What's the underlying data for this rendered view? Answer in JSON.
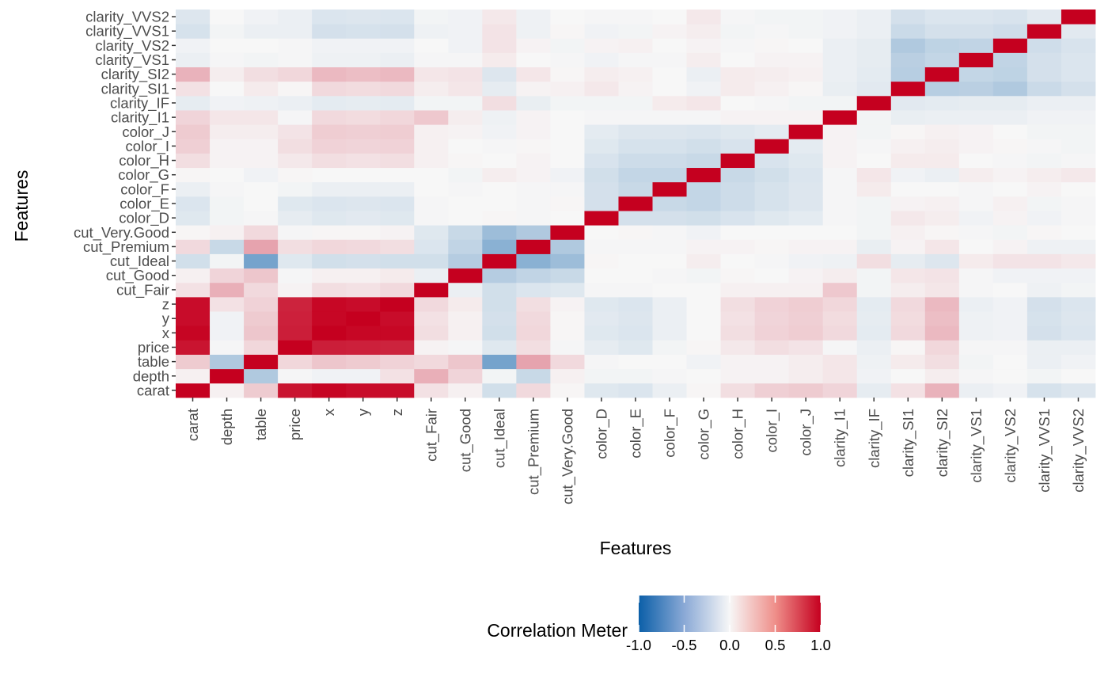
{
  "chart_data": {
    "type": "heatmap",
    "xlabel": "Features",
    "ylabel": "Features",
    "features": [
      "carat",
      "depth",
      "table",
      "price",
      "x",
      "y",
      "z",
      "cut_Fair",
      "cut_Good",
      "cut_Ideal",
      "cut_Premium",
      "cut_Very.Good",
      "color_D",
      "color_E",
      "color_F",
      "color_G",
      "color_H",
      "color_I",
      "color_J",
      "clarity_I1",
      "clarity_IF",
      "clarity_SI1",
      "clarity_SI2",
      "clarity_VS1",
      "clarity_VS2",
      "clarity_VVS1",
      "clarity_VVS2"
    ],
    "colorscale": {
      "low": "#053061",
      "mid": "#f7f7f7",
      "high": "#c5001f",
      "low_hex": "#0b5fa8"
    },
    "legend": {
      "title": "Correlation Meter",
      "range": [
        -1.0,
        1.0
      ],
      "ticks": [
        "-1.0",
        "-0.5",
        "0.0",
        "0.5",
        "1.0"
      ],
      "position": "bottom"
    },
    "matrix": [
      [
        1.0,
        0.03,
        0.18,
        0.92,
        0.98,
        0.95,
        0.95,
        0.09,
        0.03,
        -0.16,
        0.12,
        0.01,
        -0.1,
        -0.12,
        -0.05,
        0.01,
        0.1,
        0.16,
        0.18,
        0.14,
        -0.07,
        0.09,
        0.28,
        -0.05,
        -0.03,
        -0.14,
        -0.11
      ],
      [
        0.03,
        1.0,
        -0.3,
        -0.01,
        -0.03,
        -0.03,
        0.09,
        0.29,
        0.14,
        -0.02,
        -0.2,
        0.03,
        -0.02,
        -0.02,
        -0.01,
        0.0,
        0.02,
        0.02,
        0.04,
        0.07,
        -0.03,
        0.0,
        0.04,
        -0.01,
        0.0,
        -0.02,
        0.0
      ],
      [
        0.18,
        -0.3,
        1.0,
        0.13,
        0.2,
        0.18,
        0.15,
        0.12,
        0.2,
        -0.55,
        0.34,
        0.12,
        -0.01,
        0.0,
        0.0,
        -0.03,
        0.02,
        0.02,
        0.04,
        0.07,
        -0.04,
        0.05,
        0.1,
        -0.02,
        0.0,
        -0.05,
        -0.03
      ],
      [
        0.92,
        -0.01,
        0.13,
        1.0,
        0.88,
        0.87,
        0.86,
        0.02,
        -0.01,
        -0.1,
        0.1,
        -0.01,
        -0.07,
        -0.1,
        -0.02,
        0.01,
        0.06,
        0.1,
        0.08,
        -0.01,
        -0.05,
        0.01,
        0.13,
        -0.01,
        -0.01,
        -0.05,
        -0.05
      ],
      [
        0.98,
        -0.03,
        0.2,
        0.88,
        1.0,
        0.97,
        0.97,
        0.1,
        0.03,
        -0.16,
        0.13,
        0.01,
        -0.1,
        -0.12,
        -0.05,
        0.0,
        0.1,
        0.15,
        0.17,
        0.12,
        -0.08,
        0.12,
        0.25,
        -0.04,
        -0.03,
        -0.15,
        -0.12
      ],
      [
        0.95,
        -0.03,
        0.18,
        0.87,
        0.97,
        1.0,
        0.95,
        0.09,
        0.03,
        -0.15,
        0.12,
        0.01,
        -0.09,
        -0.11,
        -0.05,
        0.0,
        0.09,
        0.14,
        0.16,
        0.11,
        -0.07,
        0.11,
        0.23,
        -0.04,
        -0.03,
        -0.14,
        -0.11
      ],
      [
        0.95,
        0.09,
        0.15,
        0.86,
        0.97,
        0.95,
        1.0,
        0.12,
        0.05,
        -0.16,
        0.1,
        0.02,
        -0.1,
        -0.12,
        -0.05,
        0.0,
        0.1,
        0.15,
        0.17,
        0.13,
        -0.08,
        0.12,
        0.25,
        -0.05,
        -0.03,
        -0.15,
        -0.12
      ],
      [
        0.09,
        0.29,
        0.12,
        0.02,
        0.1,
        0.09,
        0.12,
        1.0,
        -0.05,
        -0.16,
        -0.12,
        -0.1,
        -0.01,
        -0.01,
        0.0,
        0.0,
        0.03,
        0.03,
        0.03,
        0.19,
        -0.02,
        0.04,
        0.07,
        -0.01,
        0.0,
        -0.04,
        -0.02
      ],
      [
        0.03,
        0.14,
        0.2,
        -0.01,
        0.03,
        0.03,
        0.05,
        -0.05,
        1.0,
        -0.28,
        -0.23,
        -0.2,
        0.0,
        0.0,
        -0.01,
        -0.02,
        0.01,
        0.0,
        0.02,
        0.04,
        -0.02,
        0.07,
        0.08,
        -0.01,
        -0.03,
        -0.03,
        -0.03
      ],
      [
        -0.16,
        -0.02,
        -0.55,
        -0.1,
        -0.16,
        -0.15,
        -0.16,
        -0.16,
        -0.28,
        1.0,
        -0.46,
        -0.38,
        0.01,
        0.0,
        0.0,
        0.04,
        0.0,
        -0.01,
        -0.03,
        -0.04,
        0.1,
        -0.07,
        -0.11,
        0.05,
        0.08,
        0.08,
        0.06
      ],
      [
        0.12,
        -0.2,
        0.34,
        0.1,
        0.13,
        0.12,
        0.1,
        -0.12,
        -0.23,
        -0.46,
        1.0,
        -0.3,
        -0.01,
        -0.01,
        -0.01,
        0.02,
        0.02,
        0.01,
        0.02,
        0.02,
        -0.06,
        0.02,
        0.07,
        0.0,
        0.02,
        -0.04,
        -0.04
      ],
      [
        0.01,
        0.03,
        0.12,
        -0.01,
        0.01,
        0.01,
        0.02,
        -0.1,
        -0.2,
        -0.38,
        -0.3,
        1.0,
        0.0,
        0.01,
        -0.01,
        -0.03,
        0.0,
        0.0,
        0.0,
        0.0,
        -0.02,
        0.03,
        0.01,
        -0.01,
        -0.02,
        0.01,
        0.0
      ],
      [
        -0.1,
        -0.02,
        -0.01,
        -0.07,
        -0.1,
        -0.09,
        -0.1,
        -0.01,
        0.0,
        0.01,
        -0.01,
        0.0,
        1.0,
        -0.15,
        -0.15,
        -0.16,
        -0.13,
        -0.1,
        -0.08,
        -0.01,
        -0.02,
        0.06,
        0.04,
        -0.03,
        0.02,
        -0.03,
        -0.01
      ],
      [
        -0.12,
        -0.02,
        0.0,
        -0.1,
        -0.12,
        -0.11,
        -0.12,
        -0.01,
        0.0,
        0.0,
        -0.01,
        0.01,
        -0.15,
        1.0,
        -0.2,
        -0.22,
        -0.18,
        -0.14,
        -0.11,
        -0.01,
        -0.02,
        0.02,
        0.03,
        -0.01,
        0.03,
        -0.02,
        -0.01
      ],
      [
        -0.05,
        -0.01,
        0.0,
        -0.02,
        -0.05,
        -0.05,
        -0.05,
        0.0,
        -0.01,
        0.0,
        -0.01,
        -0.01,
        -0.15,
        -0.2,
        1.0,
        -0.22,
        -0.18,
        -0.14,
        -0.11,
        -0.01,
        0.05,
        0.0,
        0.0,
        -0.01,
        0.0,
        0.02,
        0.0
      ],
      [
        0.01,
        0.0,
        -0.03,
        0.01,
        0.0,
        0.0,
        0.0,
        0.0,
        -0.02,
        0.04,
        0.02,
        -0.03,
        -0.16,
        -0.22,
        -0.22,
        1.0,
        -0.2,
        -0.16,
        -0.12,
        -0.01,
        0.07,
        -0.03,
        -0.05,
        0.04,
        0.02,
        0.04,
        0.06
      ],
      [
        0.1,
        0.02,
        0.02,
        0.06,
        0.1,
        0.09,
        0.1,
        0.03,
        0.01,
        0.0,
        0.02,
        0.0,
        -0.13,
        -0.18,
        -0.18,
        -0.2,
        1.0,
        -0.13,
        -0.1,
        0.02,
        0.0,
        0.05,
        0.05,
        0.0,
        -0.01,
        -0.02,
        -0.01
      ],
      [
        0.16,
        0.02,
        0.02,
        0.1,
        0.15,
        0.14,
        0.15,
        0.03,
        0.0,
        -0.01,
        0.01,
        0.0,
        -0.1,
        -0.14,
        -0.14,
        -0.16,
        -0.13,
        1.0,
        -0.08,
        0.02,
        -0.01,
        0.03,
        0.04,
        0.02,
        0.01,
        -0.01,
        -0.02
      ],
      [
        0.18,
        0.04,
        0.04,
        0.08,
        0.17,
        0.16,
        0.17,
        0.03,
        0.02,
        -0.03,
        0.02,
        0.0,
        -0.08,
        -0.11,
        -0.11,
        -0.12,
        -0.1,
        -0.08,
        1.0,
        0.02,
        -0.02,
        0.01,
        0.03,
        0.02,
        0.0,
        -0.02,
        -0.02
      ],
      [
        0.14,
        0.07,
        0.07,
        -0.01,
        0.12,
        0.11,
        0.13,
        0.19,
        0.04,
        -0.04,
        0.02,
        0.0,
        -0.01,
        -0.01,
        -0.01,
        -0.01,
        0.02,
        0.02,
        0.02,
        1.0,
        -0.02,
        -0.06,
        -0.05,
        -0.05,
        -0.05,
        -0.03,
        -0.03
      ],
      [
        -0.07,
        -0.03,
        -0.04,
        -0.05,
        -0.08,
        -0.07,
        -0.08,
        -0.02,
        -0.02,
        0.1,
        -0.06,
        -0.02,
        -0.02,
        -0.02,
        0.05,
        0.07,
        0.0,
        -0.01,
        -0.02,
        -0.02,
        1.0,
        -0.09,
        -0.08,
        -0.07,
        -0.07,
        -0.05,
        -0.05
      ],
      [
        0.09,
        0.0,
        0.05,
        0.01,
        0.12,
        0.11,
        0.12,
        0.04,
        0.07,
        -0.07,
        0.02,
        0.03,
        0.06,
        0.02,
        0.0,
        -0.03,
        0.05,
        0.03,
        0.01,
        -0.06,
        -0.09,
        1.0,
        -0.27,
        -0.26,
        -0.3,
        -0.19,
        -0.15
      ],
      [
        0.28,
        0.04,
        0.1,
        0.13,
        0.25,
        0.23,
        0.25,
        0.07,
        0.08,
        -0.11,
        0.07,
        0.01,
        0.04,
        0.03,
        0.0,
        -0.05,
        0.05,
        0.04,
        0.03,
        -0.05,
        -0.08,
        -0.27,
        1.0,
        -0.22,
        -0.24,
        -0.15,
        -0.12
      ],
      [
        -0.05,
        -0.01,
        -0.02,
        -0.01,
        -0.04,
        -0.04,
        -0.05,
        -0.01,
        -0.01,
        0.05,
        0.0,
        -0.01,
        -0.03,
        -0.01,
        -0.01,
        0.04,
        0.0,
        0.02,
        0.02,
        -0.05,
        -0.07,
        -0.26,
        -0.22,
        1.0,
        -0.23,
        -0.15,
        -0.12
      ],
      [
        -0.03,
        0.0,
        0.0,
        -0.01,
        -0.03,
        -0.03,
        -0.03,
        0.0,
        -0.03,
        0.08,
        0.02,
        -0.02,
        0.02,
        0.03,
        0.0,
        0.02,
        -0.01,
        0.01,
        0.0,
        -0.05,
        -0.07,
        -0.3,
        -0.24,
        -0.23,
        1.0,
        -0.17,
        -0.13
      ],
      [
        -0.14,
        -0.02,
        -0.05,
        -0.05,
        -0.15,
        -0.14,
        -0.15,
        -0.04,
        -0.03,
        0.08,
        -0.04,
        0.01,
        -0.03,
        -0.02,
        0.02,
        0.04,
        -0.02,
        -0.01,
        -0.02,
        -0.03,
        -0.05,
        -0.19,
        -0.15,
        -0.15,
        -0.17,
        1.0,
        -0.09
      ],
      [
        -0.11,
        0.0,
        -0.03,
        -0.05,
        -0.12,
        -0.11,
        -0.12,
        -0.02,
        -0.03,
        0.06,
        -0.04,
        0.0,
        -0.01,
        -0.01,
        0.0,
        0.06,
        -0.01,
        -0.02,
        -0.02,
        -0.03,
        -0.05,
        -0.15,
        -0.12,
        -0.12,
        -0.13,
        -0.09,
        1.0
      ]
    ]
  }
}
